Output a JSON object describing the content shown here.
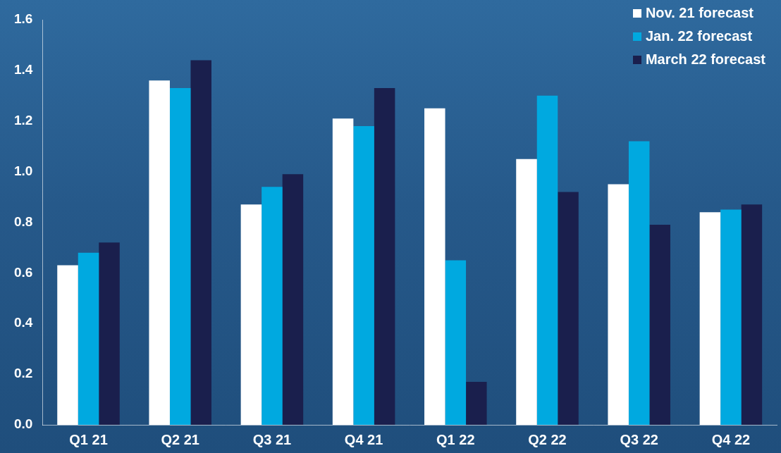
{
  "chart_data": {
    "type": "bar",
    "categories": [
      "Q1 21",
      "Q2 21",
      "Q3 21",
      "Q4 21",
      "Q1 22",
      "Q2 22",
      "Q3 22",
      "Q4 22"
    ],
    "series": [
      {
        "name": "Nov. 21 forecast",
        "color": "#ffffff",
        "values": [
          0.63,
          1.36,
          0.87,
          1.21,
          1.25,
          1.05,
          0.95,
          0.84
        ]
      },
      {
        "name": "Jan. 22 forecast",
        "color": "#00a9e0",
        "values": [
          0.68,
          1.33,
          0.94,
          1.18,
          0.65,
          1.3,
          1.12,
          0.85
        ]
      },
      {
        "name": "March 22 forecast",
        "color": "#1a1f4d",
        "values": [
          0.72,
          1.44,
          0.99,
          1.33,
          0.17,
          0.92,
          0.79,
          0.87
        ]
      }
    ],
    "ylim": [
      0,
      1.6
    ],
    "yticks": [
      {
        "value": 0,
        "label": "0.0"
      },
      0.2,
      0.4,
      0.6,
      0.8,
      {
        "value": 1,
        "label": "1.0"
      },
      1.2,
      1.4,
      1.6
    ],
    "grid": false,
    "legend": "top right"
  }
}
